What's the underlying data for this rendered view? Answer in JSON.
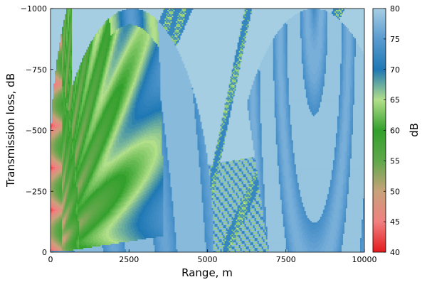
{
  "chart_data": {
    "type": "heatmap",
    "title": "",
    "xlabel": "Range, m",
    "ylabel": "Transmission loss, dB",
    "colorbar_label": "dB",
    "xlim": [
      0,
      10000
    ],
    "ylim": [
      -1000,
      0
    ],
    "y_tick_direction": "inverted (-1000 at top, 0 at bottom)",
    "x_ticks": [
      0,
      2500,
      5000,
      7500,
      10000
    ],
    "x_tick_labels": [
      "0",
      "2500",
      "5000",
      "7500",
      "10000"
    ],
    "y_ticks": [
      -1000,
      -750,
      -500,
      -250,
      0
    ],
    "y_tick_labels": [
      "−1000",
      "−750",
      "−500",
      "−250",
      "0"
    ],
    "colorbar_range": [
      40,
      80
    ],
    "colorbar_ticks": [
      40,
      45,
      50,
      55,
      60,
      65,
      70,
      75,
      80
    ],
    "colorbar_tick_labels": [
      "40",
      "45",
      "50",
      "55",
      "60",
      "65",
      "70",
      "75",
      "80"
    ],
    "colormap_stops": [
      {
        "value": 40,
        "color": "#e41a1c"
      },
      {
        "value": 45,
        "color": "#f08080"
      },
      {
        "value": 50,
        "color": "#c8a27a"
      },
      {
        "value": 55,
        "color": "#5fa84a"
      },
      {
        "value": 60,
        "color": "#33a02c"
      },
      {
        "value": 65,
        "color": "#b2df8a"
      },
      {
        "value": 70,
        "color": "#1f78b4"
      },
      {
        "value": 75,
        "color": "#5a9bd0"
      },
      {
        "value": 80,
        "color": "#a6cee3"
      }
    ],
    "grid": false,
    "legend": "colorbar right",
    "shadow_zone_color": "#a6cee3"
  }
}
